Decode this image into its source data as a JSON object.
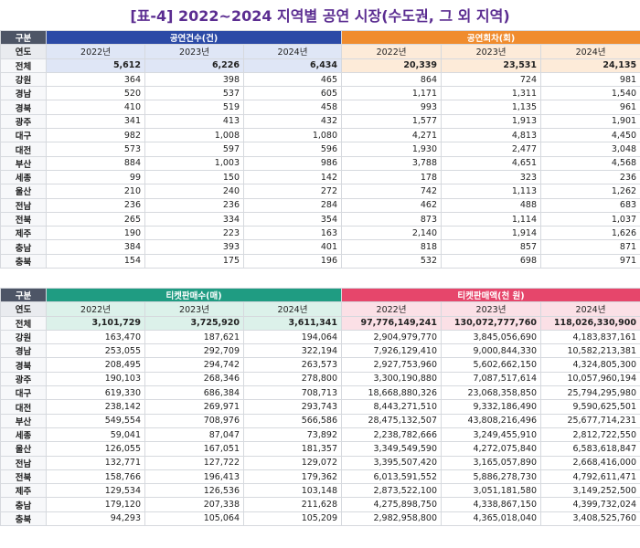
{
  "title": "[표-4] 2022~2024 지역별 공연 시장(수도권, 그 외 지역)",
  "tables": [
    {
      "header_label": "구분",
      "year_label": "연도",
      "groups": [
        {
          "name": "공연건수(건)",
          "years": [
            "2022년",
            "2023년",
            "2024년"
          ]
        },
        {
          "name": "공연회차(회)",
          "years": [
            "2022년",
            "2023년",
            "2024년"
          ]
        }
      ],
      "rows": [
        {
          "region": "전체",
          "values": [
            "5,612",
            "6,226",
            "6,434",
            "20,339",
            "23,531",
            "24,135"
          ]
        },
        {
          "region": "강원",
          "values": [
            "364",
            "398",
            "465",
            "864",
            "724",
            "981"
          ]
        },
        {
          "region": "경남",
          "values": [
            "520",
            "537",
            "605",
            "1,171",
            "1,311",
            "1,540"
          ]
        },
        {
          "region": "경북",
          "values": [
            "410",
            "519",
            "458",
            "993",
            "1,135",
            "961"
          ]
        },
        {
          "region": "광주",
          "values": [
            "341",
            "413",
            "432",
            "1,577",
            "1,913",
            "1,901"
          ]
        },
        {
          "region": "대구",
          "values": [
            "982",
            "1,008",
            "1,080",
            "4,271",
            "4,813",
            "4,450"
          ]
        },
        {
          "region": "대전",
          "values": [
            "573",
            "597",
            "596",
            "1,930",
            "2,477",
            "3,048"
          ]
        },
        {
          "region": "부산",
          "values": [
            "884",
            "1,003",
            "986",
            "3,788",
            "4,651",
            "4,568"
          ]
        },
        {
          "region": "세종",
          "values": [
            "99",
            "150",
            "142",
            "178",
            "323",
            "236"
          ]
        },
        {
          "region": "울산",
          "values": [
            "210",
            "240",
            "272",
            "742",
            "1,113",
            "1,262"
          ]
        },
        {
          "region": "전남",
          "values": [
            "236",
            "236",
            "284",
            "462",
            "488",
            "683"
          ]
        },
        {
          "region": "전북",
          "values": [
            "265",
            "334",
            "354",
            "873",
            "1,114",
            "1,037"
          ]
        },
        {
          "region": "제주",
          "values": [
            "190",
            "223",
            "163",
            "2,140",
            "1,914",
            "1,626"
          ]
        },
        {
          "region": "충남",
          "values": [
            "384",
            "393",
            "401",
            "818",
            "857",
            "871"
          ]
        },
        {
          "region": "충북",
          "values": [
            "154",
            "175",
            "196",
            "532",
            "698",
            "971"
          ]
        }
      ]
    },
    {
      "header_label": "구분",
      "year_label": "연도",
      "groups": [
        {
          "name": "티켓판매수(매)",
          "years": [
            "2022년",
            "2023년",
            "2024년"
          ]
        },
        {
          "name": "티켓판매액(천 원)",
          "years": [
            "2022년",
            "2023년",
            "2024년"
          ]
        }
      ],
      "rows": [
        {
          "region": "전체",
          "values": [
            "3,101,729",
            "3,725,920",
            "3,611,341",
            "97,776,149,241",
            "130,072,777,760",
            "118,026,330,900"
          ]
        },
        {
          "region": "강원",
          "values": [
            "163,470",
            "187,621",
            "194,064",
            "2,904,979,770",
            "3,845,056,690",
            "4,183,837,161"
          ]
        },
        {
          "region": "경남",
          "values": [
            "253,055",
            "292,709",
            "322,194",
            "7,926,129,410",
            "9,000,844,330",
            "10,582,213,381"
          ]
        },
        {
          "region": "경북",
          "values": [
            "208,495",
            "294,742",
            "263,573",
            "2,927,753,960",
            "5,602,662,150",
            "4,324,805,300"
          ]
        },
        {
          "region": "광주",
          "values": [
            "190,103",
            "268,346",
            "278,800",
            "3,300,190,880",
            "7,087,517,614",
            "10,057,960,194"
          ]
        },
        {
          "region": "대구",
          "values": [
            "619,330",
            "686,384",
            "708,713",
            "18,668,880,326",
            "23,068,358,850",
            "25,794,295,980"
          ]
        },
        {
          "region": "대전",
          "values": [
            "238,142",
            "269,971",
            "293,743",
            "8,443,271,510",
            "9,332,186,490",
            "9,590,625,501"
          ]
        },
        {
          "region": "부산",
          "values": [
            "549,554",
            "708,976",
            "566,586",
            "28,475,132,507",
            "43,808,216,496",
            "25,677,714,231"
          ]
        },
        {
          "region": "세종",
          "values": [
            "59,041",
            "87,047",
            "73,892",
            "2,238,782,666",
            "3,249,455,910",
            "2,812,722,550"
          ]
        },
        {
          "region": "울산",
          "values": [
            "126,055",
            "167,051",
            "181,357",
            "3,349,549,590",
            "4,272,075,840",
            "6,583,618,847"
          ]
        },
        {
          "region": "전남",
          "values": [
            "132,771",
            "127,722",
            "129,072",
            "3,395,507,420",
            "3,165,057,890",
            "2,668,416,000"
          ]
        },
        {
          "region": "전북",
          "values": [
            "158,766",
            "196,413",
            "179,362",
            "6,013,591,552",
            "5,886,278,730",
            "4,792,611,471"
          ]
        },
        {
          "region": "제주",
          "values": [
            "129,534",
            "126,536",
            "103,148",
            "2,873,522,100",
            "3,051,181,580",
            "3,149,252,500"
          ]
        },
        {
          "region": "충남",
          "values": [
            "179,120",
            "207,338",
            "211,628",
            "4,275,898,750",
            "4,338,867,150",
            "4,399,732,024"
          ]
        },
        {
          "region": "충북",
          "values": [
            "94,293",
            "105,064",
            "105,209",
            "2,982,958,800",
            "4,365,018,040",
            "3,408,525,760"
          ]
        }
      ]
    }
  ]
}
